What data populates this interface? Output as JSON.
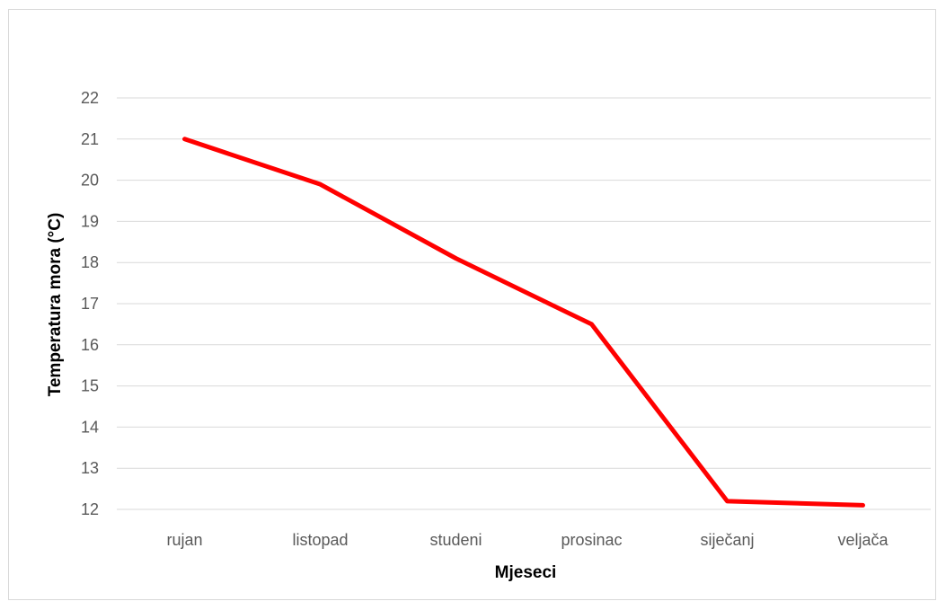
{
  "chart_data": {
    "type": "line",
    "title": "",
    "xlabel": "Mjeseci",
    "ylabel": "Temperatura mora (°C)",
    "categories": [
      "rujan",
      "listopad",
      "studeni",
      "prosinac",
      "siječanj",
      "veljača"
    ],
    "series": [
      {
        "color": "#ff0000",
        "values": [
          21,
          19.9,
          18.1,
          16.5,
          12.2,
          12.1
        ]
      }
    ],
    "ylim": [
      12,
      22
    ],
    "yticks": [
      "12",
      "13",
      "14",
      "15",
      "16",
      "17",
      "18",
      "19",
      "20",
      "21",
      "22"
    ],
    "grid": true,
    "legend": "none",
    "colors": {
      "gridline": "#d9d9d9",
      "tick_text": "#595959",
      "border": "#d9d9d9"
    }
  }
}
